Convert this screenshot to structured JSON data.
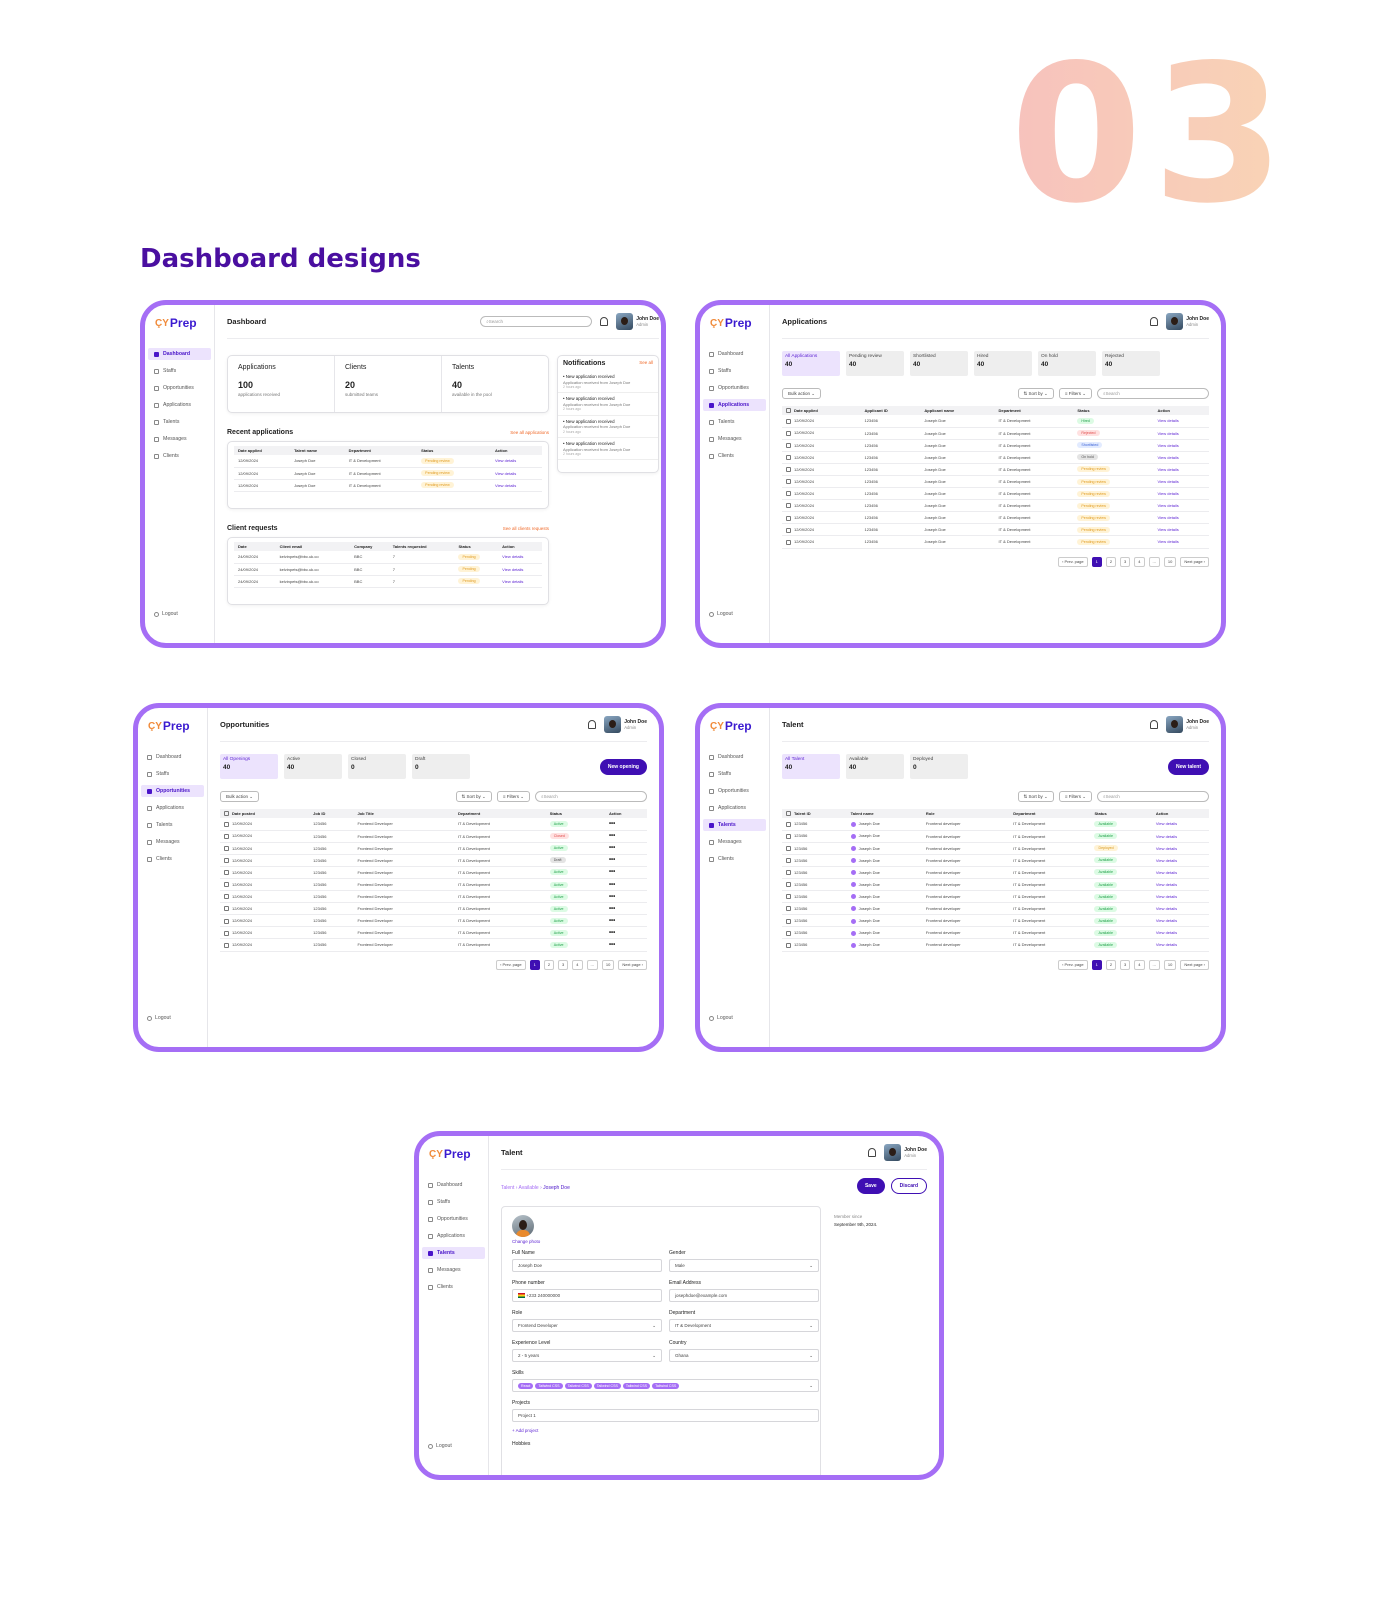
{
  "hero": {
    "number": "03",
    "heading": "Dashboard designs"
  },
  "brand": {
    "logo_text": "Prep",
    "logo_symbol": "ÇY",
    "accent": "#a56ef5",
    "primary": "#3f0fb3",
    "heading_color": "#4a0fa0"
  },
  "user": {
    "name": "John Doe",
    "role": "Admin"
  },
  "search_placeholder": "Search",
  "nav": {
    "dashboard": "Dashboard",
    "staffs": "Staffs",
    "opportunities": "Opportunities",
    "applications": "Applications",
    "talents": "Talents",
    "messages": "Messages",
    "clients": "Clients",
    "logout": "Logout"
  },
  "common": {
    "bulk_action": "Bulk action",
    "sort_by": "Sort by",
    "filters": "Filters",
    "prev_page": "Prev. page",
    "next_page": "Next page",
    "pages": [
      "1",
      "2",
      "3",
      "4",
      "...",
      "10"
    ],
    "view_details": "View details"
  },
  "dashboard": {
    "title": "Dashboard",
    "stats": [
      {
        "title": "Applications",
        "value": "100",
        "sub": "applications received"
      },
      {
        "title": "Clients",
        "value": "20",
        "sub": "submitted teams"
      },
      {
        "title": "Talents",
        "value": "40",
        "sub": "available in the pool"
      }
    ],
    "notifications_title": "Notifications",
    "see_all": "See all",
    "notifications": [
      {
        "title": "New application received",
        "text": "Application received from Joseph Doe",
        "time": "2 hours ago"
      },
      {
        "title": "New application received",
        "text": "Application received from Joseph Doe",
        "time": "2 hours ago"
      },
      {
        "title": "New application received",
        "text": "Application received from Joseph Doe",
        "time": "2 hours ago"
      },
      {
        "title": "New application received",
        "text": "Application received from Joseph Doe",
        "time": "2 hours ago"
      }
    ],
    "recent_title": "Recent applications",
    "recent_see_all": "See all applications",
    "recent_headers": [
      "Date applied",
      "Talent name",
      "Department",
      "Status",
      "Action"
    ],
    "recent_rows": [
      {
        "date": "12/09/2024",
        "name": "Joseph Doe",
        "dept": "IT & Development",
        "status": "Pending review"
      },
      {
        "date": "12/09/2024",
        "name": "Joseph Doe",
        "dept": "IT & Development",
        "status": "Pending review"
      },
      {
        "date": "12/09/2024",
        "name": "Joseph Doe",
        "dept": "IT & Development",
        "status": "Pending review"
      }
    ],
    "clients_title": "Client requests",
    "clients_see_all": "See all clients requests",
    "client_headers": [
      "Date",
      "Client email",
      "Company",
      "Talents requested",
      "Status",
      "Action"
    ],
    "client_rows": [
      {
        "date": "24/09/2024",
        "email": "kelvinpets@bbc.uk.co",
        "company": "BBC",
        "count": "7",
        "status": "Pending"
      },
      {
        "date": "24/09/2024",
        "email": "kelvinpets@bbc.uk.co",
        "company": "BBC",
        "count": "7",
        "status": "Pending"
      },
      {
        "date": "24/09/2024",
        "email": "kelvinpets@bbc.uk.co",
        "company": "BBC",
        "count": "7",
        "status": "Pending"
      }
    ]
  },
  "applications": {
    "title": "Applications",
    "tabs": [
      {
        "label": "All Applications",
        "count": "40"
      },
      {
        "label": "Pending review",
        "count": "40"
      },
      {
        "label": "Shortlisted",
        "count": "40"
      },
      {
        "label": "Hired",
        "count": "40"
      },
      {
        "label": "On hold",
        "count": "40"
      },
      {
        "label": "Rejected",
        "count": "40"
      }
    ],
    "headers": [
      "Date applied",
      "Applicant ID",
      "Applicant name",
      "Department",
      "Status",
      "Action"
    ],
    "rows": [
      {
        "date": "12/09/2024",
        "id": "123456",
        "name": "Joseph Doe",
        "dept": "IT & Development",
        "status": "Hired",
        "cls": "b-hired"
      },
      {
        "date": "12/09/2024",
        "id": "123456",
        "name": "Joseph Doe",
        "dept": "IT & Development",
        "status": "Rejected",
        "cls": "b-rejected"
      },
      {
        "date": "12/09/2024",
        "id": "123456",
        "name": "Joseph Doe",
        "dept": "IT & Development",
        "status": "Shortlisted",
        "cls": "b-shortlisted"
      },
      {
        "date": "12/09/2024",
        "id": "123456",
        "name": "Joseph Doe",
        "dept": "IT & Development",
        "status": "On hold",
        "cls": "b-onhold"
      },
      {
        "date": "12/09/2024",
        "id": "123456",
        "name": "Joseph Doe",
        "dept": "IT & Development",
        "status": "Pending review",
        "cls": "b-pending"
      },
      {
        "date": "12/09/2024",
        "id": "123456",
        "name": "Joseph Doe",
        "dept": "IT & Development",
        "status": "Pending review",
        "cls": "b-pending"
      },
      {
        "date": "12/09/2024",
        "id": "123456",
        "name": "Joseph Doe",
        "dept": "IT & Development",
        "status": "Pending review",
        "cls": "b-pending"
      },
      {
        "date": "12/09/2024",
        "id": "123456",
        "name": "Joseph Doe",
        "dept": "IT & Development",
        "status": "Pending review",
        "cls": "b-pending"
      },
      {
        "date": "12/09/2024",
        "id": "123456",
        "name": "Joseph Doe",
        "dept": "IT & Development",
        "status": "Pending review",
        "cls": "b-pending"
      },
      {
        "date": "12/09/2024",
        "id": "123456",
        "name": "Joseph Doe",
        "dept": "IT & Development",
        "status": "Pending review",
        "cls": "b-pending"
      },
      {
        "date": "12/09/2024",
        "id": "123456",
        "name": "Joseph Doe",
        "dept": "IT & Development",
        "status": "Pending review",
        "cls": "b-pending"
      }
    ]
  },
  "opportunities": {
    "title": "Opportunities",
    "new_button": "New opening",
    "tabs": [
      {
        "label": "All Openings",
        "count": "40"
      },
      {
        "label": "Active",
        "count": "40"
      },
      {
        "label": "Closed",
        "count": "0"
      },
      {
        "label": "Draft",
        "count": "0"
      }
    ],
    "headers": [
      "Date posted",
      "Job ID",
      "Job Title",
      "Department",
      "Status",
      "Action"
    ],
    "rows": [
      {
        "date": "12/09/2024",
        "id": "123456",
        "title": "Frontend Developer",
        "dept": "IT & Development",
        "status": "Active",
        "cls": "b-active"
      },
      {
        "date": "12/09/2024",
        "id": "123456",
        "title": "Frontend Developer",
        "dept": "IT & Development",
        "status": "Closed",
        "cls": "b-closed"
      },
      {
        "date": "12/09/2024",
        "id": "123456",
        "title": "Frontend Developer",
        "dept": "IT & Development",
        "status": "Active",
        "cls": "b-active"
      },
      {
        "date": "12/09/2024",
        "id": "123456",
        "title": "Frontend Developer",
        "dept": "IT & Development",
        "status": "Draft",
        "cls": "b-draft"
      },
      {
        "date": "12/09/2024",
        "id": "123456",
        "title": "Frontend Developer",
        "dept": "IT & Development",
        "status": "Active",
        "cls": "b-active"
      },
      {
        "date": "12/09/2024",
        "id": "123456",
        "title": "Frontend Developer",
        "dept": "IT & Development",
        "status": "Active",
        "cls": "b-active"
      },
      {
        "date": "12/09/2024",
        "id": "123456",
        "title": "Frontend Developer",
        "dept": "IT & Development",
        "status": "Active",
        "cls": "b-active"
      },
      {
        "date": "12/09/2024",
        "id": "123456",
        "title": "Frontend Developer",
        "dept": "IT & Development",
        "status": "Active",
        "cls": "b-active"
      },
      {
        "date": "12/09/2024",
        "id": "123456",
        "title": "Frontend Developer",
        "dept": "IT & Development",
        "status": "Active",
        "cls": "b-active"
      },
      {
        "date": "12/09/2024",
        "id": "123456",
        "title": "Frontend Developer",
        "dept": "IT & Development",
        "status": "Active",
        "cls": "b-active"
      },
      {
        "date": "12/09/2024",
        "id": "123456",
        "title": "Frontend Developer",
        "dept": "IT & Development",
        "status": "Active",
        "cls": "b-active"
      }
    ]
  },
  "talent": {
    "title": "Talent",
    "new_button": "New talent",
    "tabs": [
      {
        "label": "All Talent",
        "count": "40"
      },
      {
        "label": "Available",
        "count": "40"
      },
      {
        "label": "Deployed",
        "count": "0"
      }
    ],
    "headers": [
      "Talent ID",
      "Talent name",
      "Role",
      "Department",
      "Status",
      "Action"
    ],
    "rows": [
      {
        "id": "123456",
        "name": "Joseph Doe",
        "role": "Frontend developer",
        "dept": "IT & Development",
        "status": "Available",
        "cls": "b-available"
      },
      {
        "id": "123456",
        "name": "Joseph Doe",
        "role": "Frontend developer",
        "dept": "IT & Development",
        "status": "Available",
        "cls": "b-available"
      },
      {
        "id": "123456",
        "name": "Joseph Doe",
        "role": "Frontend developer",
        "dept": "IT & Development",
        "status": "Deployed",
        "cls": "b-deployed"
      },
      {
        "id": "123456",
        "name": "Joseph Doe",
        "role": "Frontend developer",
        "dept": "IT & Development",
        "status": "Available",
        "cls": "b-available"
      },
      {
        "id": "123456",
        "name": "Joseph Doe",
        "role": "Frontend developer",
        "dept": "IT & Development",
        "status": "Available",
        "cls": "b-available"
      },
      {
        "id": "123456",
        "name": "Joseph Doe",
        "role": "Frontend developer",
        "dept": "IT & Development",
        "status": "Available",
        "cls": "b-available"
      },
      {
        "id": "123456",
        "name": "Joseph Doe",
        "role": "Frontend developer",
        "dept": "IT & Development",
        "status": "Available",
        "cls": "b-available"
      },
      {
        "id": "123456",
        "name": "Joseph Doe",
        "role": "Frontend developer",
        "dept": "IT & Development",
        "status": "Available",
        "cls": "b-available"
      },
      {
        "id": "123456",
        "name": "Joseph Doe",
        "role": "Frontend developer",
        "dept": "IT & Development",
        "status": "Available",
        "cls": "b-available"
      },
      {
        "id": "123456",
        "name": "Joseph Doe",
        "role": "Frontend developer",
        "dept": "IT & Development",
        "status": "Available",
        "cls": "b-available"
      },
      {
        "id": "123456",
        "name": "Joseph Doe",
        "role": "Frontend developer",
        "dept": "IT & Development",
        "status": "Available",
        "cls": "b-available"
      }
    ]
  },
  "profile": {
    "title": "Talent",
    "breadcrumb_1": "Talent",
    "breadcrumb_2": "Available",
    "breadcrumb_3": "Joseph Doe",
    "save": "Save",
    "discard": "Discard",
    "change_photo": "Change photo",
    "member_since_label": "Member since",
    "member_since": "September 9th, 2024.",
    "full_name_label": "Full Name",
    "full_name": "Joseph Doe",
    "gender_label": "Gender",
    "gender": "Male",
    "phone_label": "Phone number",
    "phone": "+233  240000000",
    "email_label": "Email Address",
    "email": "josephdoe@example.com",
    "role_label": "Role",
    "role": "Frontend Developer",
    "department_label": "Department",
    "department": "IT & Development",
    "experience_label": "Experience Level",
    "experience": "2 - 5 years",
    "country_label": "Country",
    "country": "Ghana",
    "skills_label": "Skills",
    "skills": [
      "React",
      "Tailwind CSS",
      "Tailwind CSS",
      "Tailwind CSS",
      "Tailwind CSS",
      "Tailwind CSS"
    ],
    "projects_label": "Projects",
    "project_1": "Project 1",
    "add_project": "+ Add project",
    "hobbies_label": "Hobbies"
  }
}
